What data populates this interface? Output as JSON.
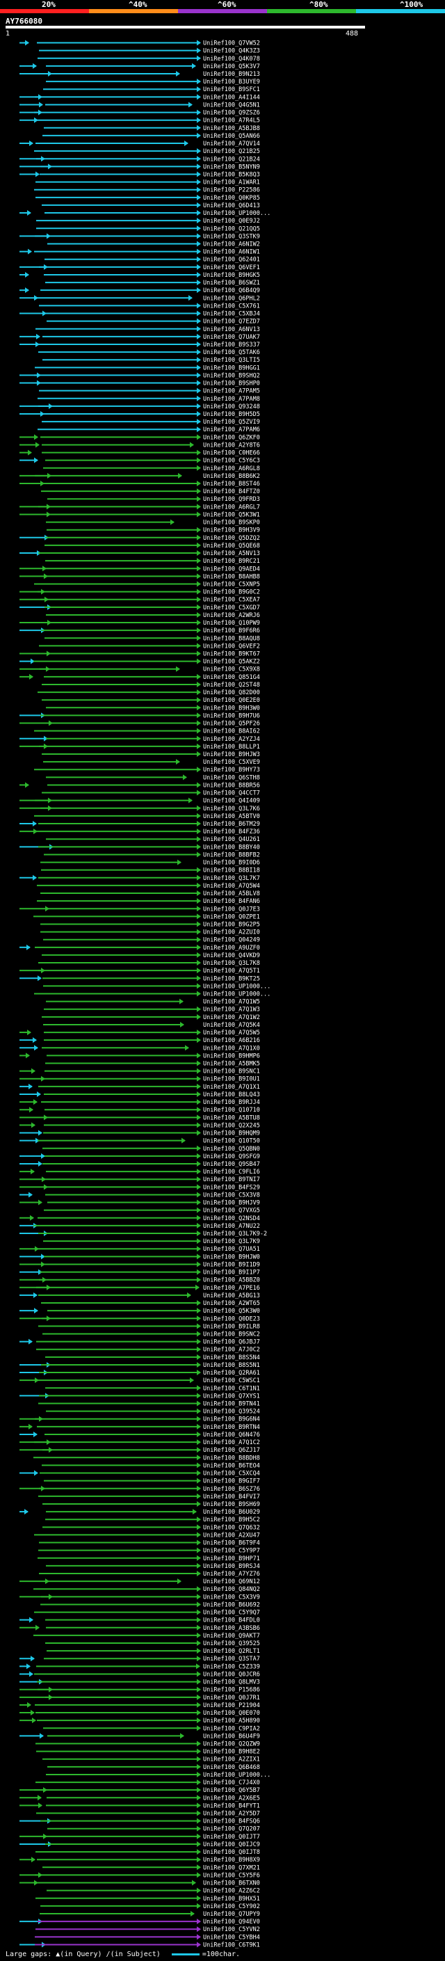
{
  "legend": {
    "labels": [
      "20%",
      "^40%",
      "^60%",
      "^80%",
      "^100%"
    ],
    "colors": [
      "#ff2020",
      "#ff8c1a",
      "#9933cc",
      "#2db82d",
      "#1ec8e8"
    ]
  },
  "query": {
    "name": "AY766080",
    "start": "1",
    "end": "488"
  },
  "subjects": [
    "UniRef100_Q7VW52",
    "UniRef100_Q4K3Z3",
    "UniRef100_Q4K078",
    "UniRef100_Q5K3V7",
    "UniRef100_B9N213",
    "UniRef100_B3UYE9",
    "UniRef100_B9SFC1",
    "UniRef100_A4I144",
    "UniRef100_Q4G5N1",
    "UniRef100_Q9ZSZ6",
    "UniRef100_A7R4L5",
    "UniRef100_A5BJB8",
    "UniRef100_Q5AN66",
    "UniRef100_A7QV14",
    "UniRef100_Q21B25",
    "UniRef100_Q21B24",
    "UniRef100_B5NYN9",
    "UniRef100_B5K8Q3",
    "UniRef100_A1WAR1",
    "UniRef100_P22586",
    "UniRef100_Q0KP85",
    "UniRef100_Q6D413",
    "UniRef100_UP1000...",
    "UniRef100_Q0E9J2",
    "UniRef100_Q21QQ5",
    "UniRef100_Q3STK9",
    "UniRef100_A6NIW2",
    "UniRef100_A6NIW1",
    "UniRef100_Q62401",
    "UniRef100_Q6VEF1",
    "UniRef100_B9HGK5",
    "UniRef100_B6SWZ1",
    "UniRef100_Q6B4Q9",
    "UniRef100_Q6PHL2",
    "UniRef100_C5X761",
    "UniRef100_C5XBJ4",
    "UniRef100_Q7EZD7",
    "UniRef100_A6NV13",
    "UniRef100_Q7UAK7",
    "UniRef100_B9S337",
    "UniRef100_Q5TAK6",
    "UniRef100_Q3LTI5",
    "UniRef100_B9HGG1",
    "UniRef100_B9SHQ2",
    "UniRef100_B9SHP0",
    "UniRef100_A7PAM5",
    "UniRef100_A7PAM8",
    "UniRef100_Q93248",
    "UniRef100_B9H5D5",
    "UniRef100_Q5ZVI9",
    "UniRef100_A7PAM6",
    "UniRef100_Q6ZKF0",
    "UniRef100_A2Y8T6",
    "UniRef100_C0HE66",
    "UniRef100_C5Y6C3",
    "UniRef100_A6RGL8",
    "UniRef100_B8B6K2",
    "UniRef100_B8ST46",
    "UniRef100_B4FTZ0",
    "UniRef100_Q9FRD3",
    "UniRef100_A6RGL7",
    "UniRef100_Q5K3W1",
    "UniRef100_B9SKP0",
    "UniRef100_B9H3V9",
    "UniRef100_Q5DZQ2",
    "UniRef100_Q5QE68",
    "UniRef100_A5NV13",
    "UniRef100_B9RC21",
    "UniRef100_Q9AED4",
    "UniRef100_B8AHB8",
    "UniRef100_C5XNP5",
    "UniRef100_B9G0C2",
    "UniRef100_C5XEA7",
    "UniRef100_C5XGD7",
    "UniRef100_A2WRJ6",
    "UniRef100_Q10PW9",
    "UniRef100_B9F6R6",
    "UniRef100_B8AQU8",
    "UniRef100_Q6VEF2",
    "UniRef100_B9KT67",
    "UniRef100_Q5AKZ2",
    "UniRef100_C5X9X8",
    "UniRef100_Q851G4",
    "UniRef100_Q2ST48",
    "UniRef100_Q82D00",
    "UniRef100_Q0E2E0",
    "UniRef100_B9H3W0",
    "UniRef100_B9H7U6",
    "UniRef100_Q5PF26",
    "UniRef100_B8AI62",
    "UniRef100_A2YZJ4",
    "UniRef100_B8LLP1",
    "UniRef100_B9HJW3",
    "UniRef100_C5XVE9",
    "UniRef100_B9HY73",
    "UniRef100_Q6STH8",
    "UniRef100_B8BR56",
    "UniRef100_Q4CCT7",
    "UniRef100_Q4I409",
    "UniRef100_Q3L7K6",
    "UniRef100_A5BTV0",
    "UniRef100_B6TM29",
    "UniRef100_B4FZ36",
    "UniRef100_Q4U261",
    "UniRef100_B8BY40",
    "UniRef100_B8BFB2",
    "UniRef100_B9I0D6",
    "UniRef100_B8BI18",
    "UniRef100_Q3L7K7",
    "UniRef100_A7Q5W4",
    "UniRef100_A5BLV8",
    "UniRef100_B4FAN6",
    "UniRef100_Q0J7E3",
    "UniRef100_Q0ZPE1",
    "UniRef100_B9G2P5",
    "UniRef100_A2ZUI0",
    "UniRef100_Q04249",
    "UniRef100_A9UZF0",
    "UniRef100_Q4VKD9",
    "UniRef100_Q3L7K8",
    "UniRef100_A7Q5T1",
    "UniRef100_B9KT25",
    "UniRef100_UP1000...",
    "UniRef100_UP1000...",
    "UniRef100_A7Q1W5",
    "UniRef100_A7Q1W3",
    "UniRef100_A7Q1W2",
    "UniRef100_A7Q5K4",
    "UniRef100_A7Q5W5",
    "UniRef100_A6B216",
    "UniRef100_A7Q1X0",
    "UniRef100_B9HMP6",
    "UniRef100_A5BMK5",
    "UniRef100_B9SNC1",
    "UniRef100_B9I0U1",
    "UniRef100_A7Q1X1",
    "UniRef100_B8LQ43",
    "UniRef100_B9RJJ4",
    "UniRef100_Q10710",
    "UniRef100_A5BTU8",
    "UniRef100_Q2X245",
    "UniRef100_B9HQM9",
    "UniRef100_Q10T50",
    "UniRef100_Q5QBN0",
    "UniRef100_Q9SFG9",
    "UniRef100_Q9SB47",
    "UniRef100_C9FLI6",
    "UniRef100_B9TNI7",
    "UniRef100_B4FS29",
    "UniRef100_C5X3V8",
    "UniRef100_B9HJV9",
    "UniRef100_Q7VXG5",
    "UniRef100_Q2NSD4",
    "UniRef100_A7NU22",
    "UniRef100_Q3L7K9-2",
    "UniRef100_Q3L7K9",
    "UniRef100_Q7UA51",
    "UniRef100_B9HJW0",
    "UniRef100_B9I1D9",
    "UniRef100_B9I1P7",
    "UniRef100_A5BBZ0",
    "UniRef100_A7PE16",
    "UniRef100_A5BG13",
    "UniRef100_A2WT65",
    "UniRef100_Q5K3W0",
    "UniRef100_Q0DE23",
    "UniRef100_B9ILR8",
    "UniRef100_B9SNC2",
    "UniRef100_Q6JBJ7",
    "UniRef100_A7J0C2",
    "UniRef100_B8S5N4",
    "UniRef100_B8S5N1",
    "UniRef100_Q2RA61",
    "UniRef100_C5WSC1",
    "UniRef100_C6T1N1",
    "UniRef100_Q7XYS1",
    "UniRef100_B9TN41",
    "UniRef100_Q39524",
    "UniRef100_B9G6N4",
    "UniRef100_B9RTN4",
    "UniRef100_Q6N476",
    "UniRef100_A7Q1C2",
    "UniRef100_Q6ZJ17",
    "UniRef100_B8BDH8",
    "UniRef100_B6TEO4",
    "UniRef100_C5XCQ4",
    "UniRef100_B9GIF7",
    "UniRef100_B6SZ76",
    "UniRef100_B4FVI7",
    "UniRef100_B9SH69",
    "UniRef100_B6U029",
    "UniRef100_B9H5C2",
    "UniRef100_Q7Q632",
    "UniRef100_A2XU47",
    "UniRef100_B6T9F4",
    "UniRef100_C5Y9P7",
    "UniRef100_B9HP71",
    "UniRef100_B9RSJ4",
    "UniRef100_A7YZ76",
    "UniRef100_Q69N12",
    "UniRef100_Q84NQ2",
    "UniRef100_C5X3V9",
    "UniRef100_B6U692",
    "UniRef100_C5Y9Q7",
    "UniRef100_B4FDL0",
    "UniRef100_A3BSB6",
    "UniRef100_Q9AKT7",
    "UniRef100_Q39525",
    "UniRef100_Q2RLT1",
    "UniRef100_Q3STA7",
    "UniRef100_C5Z339",
    "UniRef100_Q0JCR6",
    "UniRef100_Q8LMV3",
    "UniRef100_P15686",
    "UniRef100_Q0J7R1",
    "UniRef100_P21904",
    "UniRef100_Q0E070",
    "UniRef100_A5H890",
    "UniRef100_C9PIA2",
    "UniRef100_B6U4F9",
    "UniRef100_Q2QZW9",
    "UniRef100_B9H8E2",
    "UniRef100_A2ZIX1",
    "UniRef100_Q6B468",
    "UniRef100_UP1000...",
    "UniRef100_C7J4X0",
    "UniRef100_Q6Y5B7",
    "UniRef100_A2X6E5",
    "UniRef100_B4FYT1",
    "UniRef100_A2Y5D7",
    "UniRef100_B4FSQ6",
    "UniRef100_Q7Q207",
    "UniRef100_Q0IJT7",
    "UniRef100_Q0IJC9",
    "UniRef100_Q0IJT8",
    "UniRef100_B9H8X9",
    "UniRef100_Q7XM21",
    "UniRef100_C5Y5F6",
    "UniRef100_B6TXN0",
    "UniRef100_A2Z6C2",
    "UniRef100_B9HX51",
    "UniRef100_C5Y902",
    "UniRef100_Q7UPY9",
    "UniRef100_Q94EV0",
    "UniRef100_C5YVN2",
    "UniRef100_C5YBH4",
    "UniRef100_C6T9K1"
  ],
  "footer": {
    "large_gaps_label": "Large gaps:",
    "in_query": "(in Query)",
    "in_subject": "(in Subject)",
    "scale_label": "=100char."
  }
}
